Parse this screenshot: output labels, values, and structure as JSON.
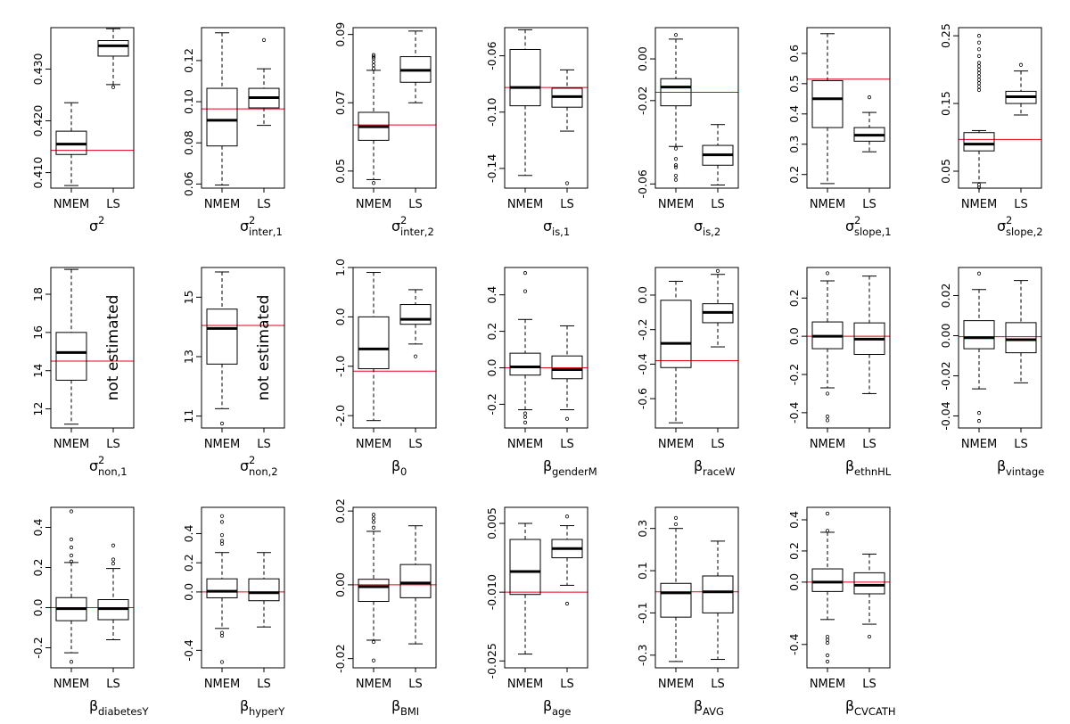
{
  "chart_data": [
    {
      "type": "box",
      "categories": [
        "NMEM",
        "LS"
      ],
      "title": {
        "main": "σ",
        "sup": "2",
        "sub": ""
      },
      "ylim": [
        0.407,
        0.438
      ],
      "yticks": [
        "0.410",
        "0.420",
        "0.430"
      ],
      "yticks_at": [
        0.41,
        0.42,
        0.43
      ],
      "ref": 0.4143,
      "boxes": [
        {
          "lo": 0.4075,
          "q1": 0.4135,
          "med": 0.4155,
          "q3": 0.418,
          "hi": 0.4235,
          "out": []
        },
        {
          "lo": 0.427,
          "q1": 0.4325,
          "med": 0.4345,
          "q3": 0.4355,
          "hi": 0.4378,
          "out": [
            0.4265
          ]
        }
      ],
      "note": ""
    },
    {
      "type": "box",
      "categories": [
        "NMEM",
        "LS"
      ],
      "title": {
        "main": "σ",
        "sup": "2",
        "sub": "inter,1"
      },
      "ylim": [
        0.058,
        0.136
      ],
      "yticks": [
        "0.06",
        "0.08",
        "0.10",
        "0.12"
      ],
      "yticks_at": [
        0.06,
        0.08,
        0.1,
        0.12
      ],
      "ref": 0.0965,
      "boxes": [
        {
          "lo": 0.0595,
          "q1": 0.0785,
          "med": 0.091,
          "q3": 0.1065,
          "hi": 0.1335,
          "out": []
        },
        {
          "lo": 0.0885,
          "q1": 0.097,
          "med": 0.102,
          "q3": 0.1065,
          "hi": 0.116,
          "out": [
            0.13
          ]
        }
      ],
      "note": ""
    },
    {
      "type": "box",
      "categories": [
        "NMEM",
        "LS"
      ],
      "title": {
        "main": "σ",
        "sup": "2",
        "sub": "inter,2"
      },
      "ylim": [
        0.045,
        0.092
      ],
      "yticks": [
        "0.05",
        "0.07",
        "0.09"
      ],
      "yticks_at": [
        0.05,
        0.07,
        0.09
      ],
      "ref": 0.0635,
      "boxes": [
        {
          "lo": 0.0475,
          "q1": 0.059,
          "med": 0.063,
          "q3": 0.0672,
          "hi": 0.0795,
          "out": [
            0.0465,
            0.08,
            0.081,
            0.082,
            0.083,
            0.0835,
            0.084
          ]
        },
        {
          "lo": 0.07,
          "q1": 0.076,
          "med": 0.0795,
          "q3": 0.0835,
          "hi": 0.091,
          "out": []
        }
      ],
      "note": ""
    },
    {
      "type": "box",
      "categories": [
        "NMEM",
        "LS"
      ],
      "title": {
        "main": "σ",
        "sup": "",
        "sub": "is,1"
      },
      "ylim": [
        -0.154,
        -0.04
      ],
      "yticks": [
        "-0.14",
        "-0.10",
        "-0.06"
      ],
      "yticks_at": [
        -0.14,
        -0.1,
        -0.06
      ],
      "ref": -0.0825,
      "boxes": [
        {
          "lo": -0.145,
          "q1": -0.0955,
          "med": -0.0825,
          "q3": -0.0555,
          "hi": -0.0415,
          "out": []
        },
        {
          "lo": -0.1135,
          "q1": -0.0965,
          "med": -0.089,
          "q3": -0.083,
          "hi": -0.07,
          "out": [
            -0.1505
          ]
        }
      ],
      "note": ""
    },
    {
      "type": "box",
      "categories": [
        "NMEM",
        "LS"
      ],
      "title": {
        "main": "σ",
        "sup": "",
        "sub": "is,2"
      },
      "ylim": [
        -0.062,
        0.015
      ],
      "yticks": [
        "-0.06",
        "-0.02",
        "0.00"
      ],
      "yticks_at": [
        -0.06,
        -0.02,
        0
      ],
      "ref": -0.016,
      "boxes": [
        {
          "lo": -0.042,
          "q1": -0.0225,
          "med": -0.0135,
          "q3": -0.0095,
          "hi": 0.0095,
          "out": [
            -0.043,
            -0.048,
            -0.051,
            -0.052,
            -0.056,
            -0.058,
            0.0115
          ]
        },
        {
          "lo": -0.0605,
          "q1": -0.051,
          "med": -0.046,
          "q3": -0.0415,
          "hi": -0.0315,
          "out": []
        }
      ],
      "note": ""
    },
    {
      "type": "box",
      "categories": [
        "NMEM",
        "LS"
      ],
      "title": {
        "main": "σ",
        "sup": "2",
        "sub": "slope,1"
      },
      "ylim": [
        0.155,
        0.685
      ],
      "yticks": [
        "0.2",
        "0.3",
        "0.4",
        "0.5",
        "0.6"
      ],
      "yticks_at": [
        0.2,
        0.3,
        0.4,
        0.5,
        0.6
      ],
      "ref": 0.515,
      "boxes": [
        {
          "lo": 0.17,
          "q1": 0.355,
          "med": 0.45,
          "q3": 0.51,
          "hi": 0.665,
          "out": []
        },
        {
          "lo": 0.275,
          "q1": 0.31,
          "med": 0.33,
          "q3": 0.355,
          "hi": 0.405,
          "out": [
            0.455
          ]
        }
      ],
      "note": ""
    },
    {
      "type": "box",
      "categories": [
        "NMEM",
        "LS"
      ],
      "title": {
        "main": "σ",
        "sup": "2",
        "sub": "slope,2"
      },
      "ylim": [
        0.025,
        0.262
      ],
      "yticks": [
        "0.05",
        "0.15",
        "0.25"
      ],
      "yticks_at": [
        0.05,
        0.15,
        0.25
      ],
      "ref": 0.097,
      "boxes": [
        {
          "lo": 0.033,
          "q1": 0.08,
          "med": 0.09,
          "q3": 0.107,
          "hi": 0.11,
          "out": [
            0.026,
            0.03,
            0.17,
            0.175,
            0.18,
            0.185,
            0.19,
            0.195,
            0.2,
            0.205,
            0.21,
            0.22,
            0.23,
            0.24,
            0.25
          ]
        },
        {
          "lo": 0.133,
          "q1": 0.15,
          "med": 0.16,
          "q3": 0.168,
          "hi": 0.198,
          "out": [
            0.207
          ]
        }
      ],
      "note": ""
    },
    {
      "type": "box",
      "categories": [
        "NMEM",
        "LS"
      ],
      "title": {
        "main": "σ",
        "sup": "2",
        "sub": "non,1"
      },
      "ylim": [
        11,
        19.4
      ],
      "yticks": [
        "12",
        "14",
        "16",
        "18"
      ],
      "yticks_at": [
        12,
        14,
        16,
        18
      ],
      "ref": 14.5,
      "boxes": [
        {
          "lo": 11.2,
          "q1": 13.5,
          "med": 14.95,
          "q3": 16,
          "hi": 19.3,
          "out": []
        },
        null
      ],
      "note": "not estimated"
    },
    {
      "type": "box",
      "categories": [
        "NMEM",
        "LS"
      ],
      "title": {
        "main": "σ",
        "sup": "2",
        "sub": "non,2"
      },
      "ylim": [
        10.6,
        16
      ],
      "yticks": [
        "11",
        "13",
        "15"
      ],
      "yticks_at": [
        11,
        13,
        15
      ],
      "ref": 14.05,
      "boxes": [
        {
          "lo": 11.25,
          "q1": 12.75,
          "med": 13.95,
          "q3": 14.6,
          "hi": 15.85,
          "out": [
            10.75
          ]
        },
        null
      ],
      "note": "not estimated"
    },
    {
      "type": "box",
      "categories": [
        "NMEM",
        "LS"
      ],
      "title": {
        "main": "β",
        "sup": "",
        "sub": "0"
      },
      "ylim": [
        -2.25,
        1
      ],
      "yticks": [
        "-2.0",
        "-1.0",
        "0.0",
        "1.0"
      ],
      "yticks_at": [
        -2,
        -1,
        0,
        1
      ],
      "ref": -1.1,
      "boxes": [
        {
          "lo": -2.1,
          "q1": -1.05,
          "med": -0.65,
          "q3": 0,
          "hi": 0.9,
          "out": []
        },
        {
          "lo": -0.55,
          "q1": -0.15,
          "med": -0.05,
          "q3": 0.25,
          "hi": 0.55,
          "out": [
            -0.8
          ]
        }
      ],
      "note": ""
    },
    {
      "type": "box",
      "categories": [
        "NMEM",
        "LS"
      ],
      "title": {
        "main": "β",
        "sup": "",
        "sub": "genderM"
      },
      "ylim": [
        -0.33,
        0.55
      ],
      "yticks": [
        "-0.2",
        "0.0",
        "0.2",
        "0.4"
      ],
      "yticks_at": [
        -0.2,
        0,
        0.2,
        0.4
      ],
      "ref": 0,
      "boxes": [
        {
          "lo": -0.23,
          "q1": -0.04,
          "med": 0.005,
          "q3": 0.08,
          "hi": 0.265,
          "out": [
            -0.25,
            -0.27,
            -0.3,
            0.42,
            0.52
          ]
        },
        {
          "lo": -0.23,
          "q1": -0.06,
          "med": -0.01,
          "q3": 0.065,
          "hi": 0.23,
          "out": [
            -0.28
          ]
        }
      ],
      "note": ""
    },
    {
      "type": "box",
      "categories": [
        "NMEM",
        "LS"
      ],
      "title": {
        "main": "β",
        "sup": "",
        "sub": "raceW"
      },
      "ylim": [
        -0.77,
        0.16
      ],
      "yticks": [
        "-0.6",
        "-0.4",
        "-0.2",
        "0.0"
      ],
      "yticks_at": [
        -0.6,
        -0.4,
        -0.2,
        0
      ],
      "ref": -0.38,
      "boxes": [
        {
          "lo": -0.74,
          "q1": -0.42,
          "med": -0.28,
          "q3": -0.03,
          "hi": 0.08,
          "out": []
        },
        {
          "lo": -0.3,
          "q1": -0.16,
          "med": -0.1,
          "q3": -0.05,
          "hi": 0.12,
          "out": [
            0.14
          ]
        }
      ],
      "note": ""
    },
    {
      "type": "box",
      "categories": [
        "NMEM",
        "LS"
      ],
      "title": {
        "main": "β",
        "sup": "",
        "sub": "ethnHL"
      },
      "ylim": [
        -0.48,
        0.36
      ],
      "yticks": [
        "-0.4",
        "-0.2",
        "0.0",
        "0.2"
      ],
      "yticks_at": [
        -0.4,
        -0.2,
        0,
        0.2
      ],
      "ref": 0,
      "boxes": [
        {
          "lo": -0.27,
          "q1": -0.065,
          "med": 0,
          "q3": 0.075,
          "hi": 0.29,
          "out": [
            -0.3,
            -0.42,
            -0.44,
            0.33
          ]
        },
        {
          "lo": -0.3,
          "q1": -0.095,
          "med": -0.015,
          "q3": 0.07,
          "hi": 0.315,
          "out": []
        }
      ],
      "note": ""
    },
    {
      "type": "box",
      "categories": [
        "NMEM",
        "LS"
      ],
      "title": {
        "main": "β",
        "sup": "",
        "sub": "vintage"
      },
      "ylim": [
        -0.046,
        0.034
      ],
      "yticks": [
        "-0.04",
        "-0.02",
        "0.00",
        "0.02"
      ],
      "yticks_at": [
        -0.04,
        -0.02,
        0,
        0.02
      ],
      "ref": -0.0005,
      "boxes": [
        {
          "lo": -0.0265,
          "q1": -0.0065,
          "med": -0.001,
          "q3": 0.0075,
          "hi": 0.023,
          "out": [
            -0.0385,
            -0.0425,
            0.031
          ]
        },
        {
          "lo": -0.0235,
          "q1": -0.0085,
          "med": -0.002,
          "q3": 0.0065,
          "hi": 0.0275,
          "out": []
        }
      ],
      "note": ""
    },
    {
      "type": "box",
      "categories": [
        "NMEM",
        "LS"
      ],
      "title": {
        "main": "β",
        "sup": "",
        "sub": "diabetesY"
      },
      "ylim": [
        -0.3,
        0.5
      ],
      "yticks": [
        "-0.2",
        "0.0",
        "0.2",
        "0.4"
      ],
      "yticks_at": [
        -0.2,
        0,
        0.2,
        0.4
      ],
      "ref": 0,
      "boxes": [
        {
          "lo": -0.225,
          "q1": -0.065,
          "med": -0.005,
          "q3": 0.05,
          "hi": 0.225,
          "out": [
            -0.27,
            0.23,
            0.26,
            0.3,
            0.34,
            0.48
          ]
        },
        {
          "lo": -0.16,
          "q1": -0.06,
          "med": -0.005,
          "q3": 0.04,
          "hi": 0.195,
          "out": [
            0.22,
            0.24,
            0.31
          ]
        }
      ],
      "note": ""
    },
    {
      "type": "box",
      "categories": [
        "NMEM",
        "LS"
      ],
      "title": {
        "main": "β",
        "sup": "",
        "sub": "hyperY"
      },
      "ylim": [
        -0.52,
        0.58
      ],
      "yticks": [
        "-0.4",
        "0.0",
        "0.2",
        "0.4"
      ],
      "yticks_at": [
        -0.4,
        0,
        0.2,
        0.4
      ],
      "ref": 0,
      "boxes": [
        {
          "lo": -0.25,
          "q1": -0.04,
          "med": 0.005,
          "q3": 0.09,
          "hi": 0.27,
          "out": [
            -0.28,
            -0.3,
            -0.48,
            0.33,
            0.35,
            0.39,
            0.48,
            0.52
          ]
        },
        {
          "lo": -0.24,
          "q1": -0.06,
          "med": -0.005,
          "q3": 0.09,
          "hi": 0.27,
          "out": []
        }
      ],
      "note": ""
    },
    {
      "type": "box",
      "categories": [
        "NMEM",
        "LS"
      ],
      "title": {
        "main": "β",
        "sup": "",
        "sub": "BMI"
      },
      "ylim": [
        -0.0225,
        0.021
      ],
      "yticks": [
        "-0.02",
        "0.00",
        "0.02"
      ],
      "yticks_at": [
        -0.02,
        0,
        0.02
      ],
      "ref": 0,
      "boxes": [
        {
          "lo": -0.015,
          "q1": -0.0045,
          "med": -0.0005,
          "q3": 0.0015,
          "hi": 0.0145,
          "out": [
            -0.0155,
            -0.0205,
            0.0155,
            0.017,
            0.018,
            0.019
          ]
        },
        {
          "lo": -0.016,
          "q1": -0.0035,
          "med": 0.0005,
          "q3": 0.0055,
          "hi": 0.016,
          "out": []
        }
      ],
      "note": ""
    },
    {
      "type": "box",
      "categories": [
        "NMEM",
        "LS"
      ],
      "title": {
        "main": "β",
        "sup": "",
        "sub": "age"
      },
      "ylim": [
        -0.0265,
        0.0085
      ],
      "yticks": [
        "-0.025",
        "-0.010",
        "0.005"
      ],
      "yticks_at": [
        -0.025,
        -0.01,
        0.005
      ],
      "ref": -0.01,
      "boxes": [
        {
          "lo": -0.0235,
          "q1": -0.0105,
          "med": -0.0055,
          "q3": 0.0015,
          "hi": 0.005,
          "out": []
        },
        {
          "lo": -0.0085,
          "q1": -0.0025,
          "med": -0.0005,
          "q3": 0.0015,
          "hi": 0.0045,
          "out": [
            -0.0125,
            0.0065
          ]
        }
      ],
      "note": ""
    },
    {
      "type": "box",
      "categories": [
        "NMEM",
        "LS"
      ],
      "title": {
        "main": "β",
        "sup": "",
        "sub": "AVG"
      },
      "ylim": [
        -0.36,
        0.4
      ],
      "yticks": [
        "-0.3",
        "-0.1",
        "0.1",
        "0.3"
      ],
      "yticks_at": [
        -0.3,
        -0.1,
        0.1,
        0.3
      ],
      "ref": 0,
      "boxes": [
        {
          "lo": -0.33,
          "q1": -0.12,
          "med": -0.005,
          "q3": 0.04,
          "hi": 0.3,
          "out": [
            0.32,
            0.35
          ]
        },
        {
          "lo": -0.32,
          "q1": -0.1,
          "med": 0,
          "q3": 0.075,
          "hi": 0.24,
          "out": []
        }
      ],
      "note": ""
    },
    {
      "type": "box",
      "categories": [
        "NMEM",
        "LS"
      ],
      "title": {
        "main": "β",
        "sup": "",
        "sub": "CVCATH"
      },
      "ylim": [
        -0.55,
        0.48
      ],
      "yticks": [
        "-0.4",
        "0.0",
        "0.2",
        "0.4"
      ],
      "yticks_at": [
        -0.4,
        0,
        0.2,
        0.4
      ],
      "ref": 0,
      "boxes": [
        {
          "lo": -0.24,
          "q1": -0.06,
          "med": 0,
          "q3": 0.085,
          "hi": 0.32,
          "out": [
            -0.35,
            -0.37,
            -0.39,
            -0.47,
            -0.51,
            0.33,
            0.44
          ]
        },
        {
          "lo": -0.27,
          "q1": -0.075,
          "med": -0.02,
          "q3": 0.06,
          "hi": 0.18,
          "out": [
            -0.35
          ]
        }
      ],
      "note": ""
    }
  ]
}
